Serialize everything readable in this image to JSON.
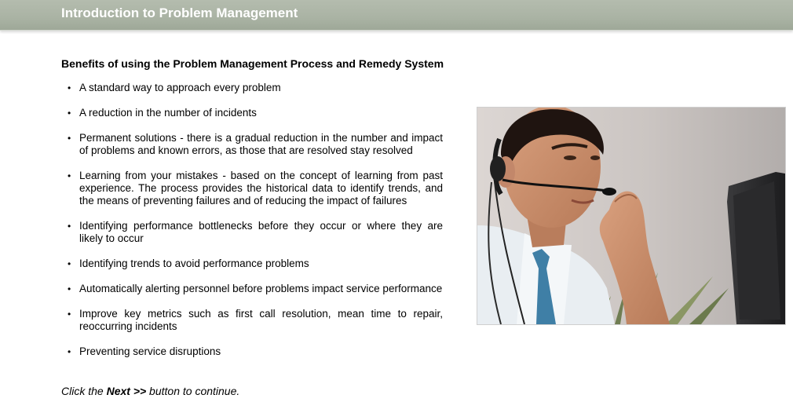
{
  "header": {
    "title": "Introduction to Problem Management"
  },
  "content": {
    "heading": "Benefits of using the Problem Management Process and Remedy System",
    "bullet_glyph": "•",
    "items": [
      {
        "text": "A standard way to approach every problem"
      },
      {
        "text": "A reduction in the number of incidents"
      },
      {
        "text": "Permanent solutions - there is a gradual reduction in the number and impact of problems and known errors, as those that are resolved stay resolved"
      },
      {
        "text": "Learning from your mistakes - based on the concept of learning from past experience. The process provides the historical data to identify trends, and the means of preventing failures and of reducing the impact of failures"
      },
      {
        "text": "Identifying performance bottlenecks before they occur or where they are likely to occur"
      },
      {
        "text": "Identifying trends to avoid performance problems"
      },
      {
        "text": "Automatically alerting personnel before problems impact service performance"
      },
      {
        "text": "Improve key metrics such as first call resolution, mean time to repair, reoccurring incidents"
      },
      {
        "text": "Preventing service disruptions"
      }
    ],
    "instruction": {
      "prefix": "Click the ",
      "button_name": "Next >>",
      "suffix": " button to continue."
    }
  },
  "photo": {
    "icon": "support-agent-headset-photo"
  },
  "colors": {
    "header_bar": "#aab3a4",
    "header_text": "#ffffff"
  }
}
